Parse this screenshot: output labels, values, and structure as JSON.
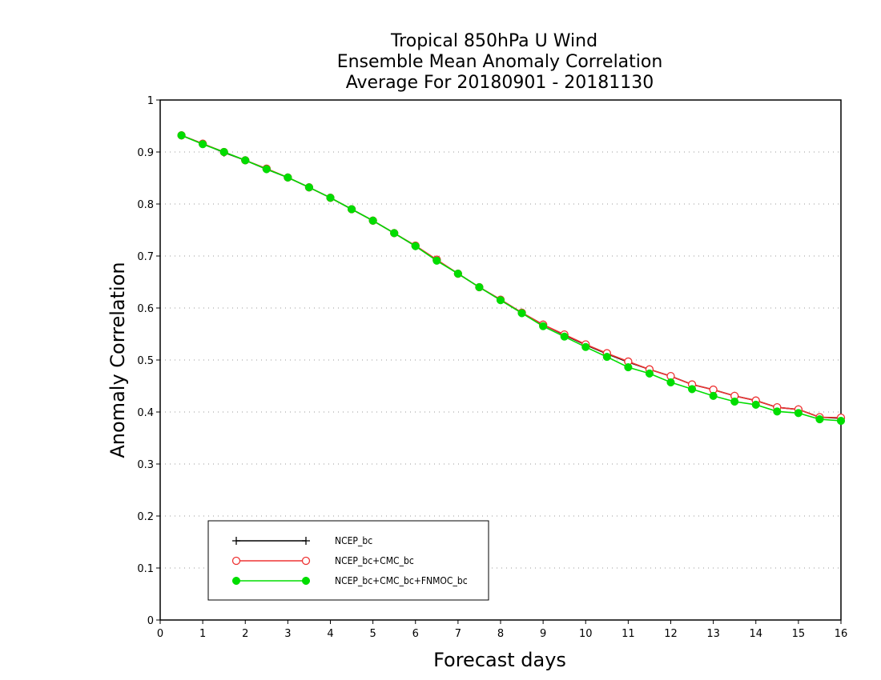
{
  "chart_data": {
    "type": "line",
    "title": [
      "Tropical 850hPa U Wind",
      "Ensemble Mean Anomaly Correlation",
      "Average For 20180901 - 20181130"
    ],
    "xlabel": "Forecast days",
    "ylabel": "Anomaly Correlation",
    "xlim": [
      0,
      16
    ],
    "ylim": [
      0,
      1
    ],
    "xticks": [
      "0",
      "1",
      "2",
      "3",
      "4",
      "5",
      "6",
      "7",
      "8",
      "9",
      "10",
      "11",
      "12",
      "13",
      "14",
      "15",
      "16"
    ],
    "yticks": [
      "0",
      "0.1",
      "0.2",
      "0.3",
      "0.4",
      "0.5",
      "0.6",
      "0.7",
      "0.8",
      "0.9",
      "1"
    ],
    "grid": true,
    "legend_position": "bottom-left",
    "x": [
      0.5,
      1,
      1.5,
      2,
      2.5,
      3,
      3.5,
      4,
      4.5,
      5,
      5.5,
      6,
      6.5,
      7,
      7.5,
      8,
      8.5,
      9,
      9.5,
      10,
      10.5,
      11,
      11.5,
      12,
      12.5,
      13,
      13.5,
      14,
      14.5,
      15,
      15.5,
      16
    ],
    "series": [
      {
        "name": "NCEP_bc",
        "color": "#000000",
        "marker": "plus",
        "values": [
          0.932,
          0.916,
          0.899,
          0.884,
          0.867,
          0.851,
          0.832,
          0.812,
          0.79,
          0.768,
          0.744,
          0.719,
          0.692,
          0.666,
          0.64,
          0.616,
          0.591,
          0.568,
          0.548,
          0.529,
          0.512,
          0.496,
          0.482,
          0.469,
          0.453,
          0.443,
          0.431,
          0.422,
          0.409,
          0.405,
          0.39,
          0.388
        ]
      },
      {
        "name": "NCEP_bc+CMC_bc",
        "color": "#ee3333",
        "marker": "open-circle",
        "values": [
          0.932,
          0.916,
          0.9,
          0.884,
          0.868,
          0.851,
          0.832,
          0.812,
          0.79,
          0.768,
          0.744,
          0.72,
          0.693,
          0.666,
          0.64,
          0.616,
          0.591,
          0.568,
          0.549,
          0.53,
          0.513,
          0.497,
          0.482,
          0.469,
          0.453,
          0.443,
          0.431,
          0.422,
          0.409,
          0.405,
          0.39,
          0.389
        ]
      },
      {
        "name": "NCEP_bc+CMC_bc+FNMOC_bc",
        "color": "#00dd00",
        "marker": "filled-circle",
        "values": [
          0.932,
          0.915,
          0.9,
          0.884,
          0.867,
          0.851,
          0.832,
          0.812,
          0.79,
          0.768,
          0.744,
          0.719,
          0.691,
          0.666,
          0.64,
          0.615,
          0.59,
          0.565,
          0.545,
          0.525,
          0.506,
          0.486,
          0.474,
          0.457,
          0.444,
          0.431,
          0.42,
          0.414,
          0.401,
          0.398,
          0.386,
          0.383
        ]
      }
    ]
  }
}
